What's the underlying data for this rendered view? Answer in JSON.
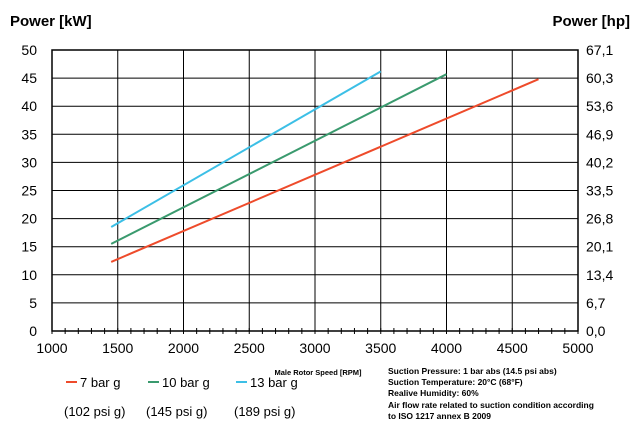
{
  "chart_data": {
    "type": "line",
    "y_left_label": "Power [kW]",
    "y_right_label": "Power [hp]",
    "xlabel": "Male Rotor Speed [RPM]",
    "xlim": [
      1000,
      5000
    ],
    "ylim": [
      0,
      50
    ],
    "x_ticks": [
      "1000",
      "1500",
      "2000",
      "2500",
      "3000",
      "3500",
      "4000",
      "4500",
      "5000"
    ],
    "y_ticks": [
      "0",
      "5",
      "10",
      "15",
      "20",
      "25",
      "30",
      "35",
      "40",
      "45",
      "50"
    ],
    "y_right_ticks": [
      "0,0",
      "6,7",
      "13,4",
      "20,1",
      "26,8",
      "33,5",
      "40,2",
      "46,9",
      "53,6",
      "60,3",
      "67,1"
    ],
    "grid": true,
    "series": [
      {
        "name": "7 bar g",
        "sub": "(102 psi g)",
        "color": "#ee4b2b",
        "points": [
          [
            1450,
            12.3
          ],
          [
            4700,
            44.8
          ]
        ]
      },
      {
        "name": "10 bar g",
        "sub": "(145 psi g)",
        "color": "#3a9a6e",
        "points": [
          [
            1450,
            15.5
          ],
          [
            4000,
            45.7
          ]
        ]
      },
      {
        "name": "13 bar g",
        "sub": "(189 psi g)",
        "color": "#3cbfe6",
        "points": [
          [
            1450,
            18.5
          ],
          [
            3500,
            46.2
          ]
        ]
      }
    ],
    "notes": [
      "Suction Pressure:   1 bar abs (14.5 psi abs)",
      "Suction Temperature:  20°C (68°F)",
      "Realive Humidity:   60%",
      "Air flow rate related to suction condition according",
      "to ISO 1217 annex B 2009"
    ]
  }
}
